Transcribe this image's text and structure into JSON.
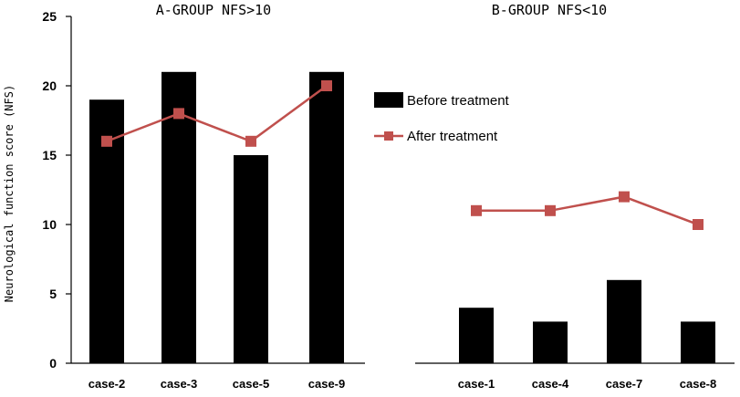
{
  "chart_data": {
    "type": "bar",
    "ylabel": "Neurological function score (NFS)",
    "ylim": [
      0,
      25
    ],
    "yticks": [
      "0",
      "5",
      "10",
      "15",
      "20",
      "25"
    ],
    "legend": {
      "position": "right",
      "before": "Before treatment",
      "after": "After treatment"
    },
    "colors": {
      "bar": "#000000",
      "line": "#c0504d"
    },
    "panels": [
      {
        "title": "A-GROUP NFS>10",
        "categories": [
          "case-2",
          "case-3",
          "case-5",
          "case-9"
        ],
        "series": [
          {
            "name": "Before treatment",
            "type": "bar",
            "values": [
              19,
              21,
              15,
              21
            ]
          },
          {
            "name": "After treatment",
            "type": "line",
            "values": [
              16,
              18,
              16,
              20
            ]
          }
        ]
      },
      {
        "title": "B-GROUP NFS<10",
        "categories": [
          "case-1",
          "case-4",
          "case-7",
          "case-8"
        ],
        "series": [
          {
            "name": "Before treatment",
            "type": "bar",
            "values": [
              4,
              3,
              6,
              3
            ]
          },
          {
            "name": "After treatment",
            "type": "line",
            "values": [
              11,
              11,
              12,
              10
            ]
          }
        ]
      }
    ]
  }
}
